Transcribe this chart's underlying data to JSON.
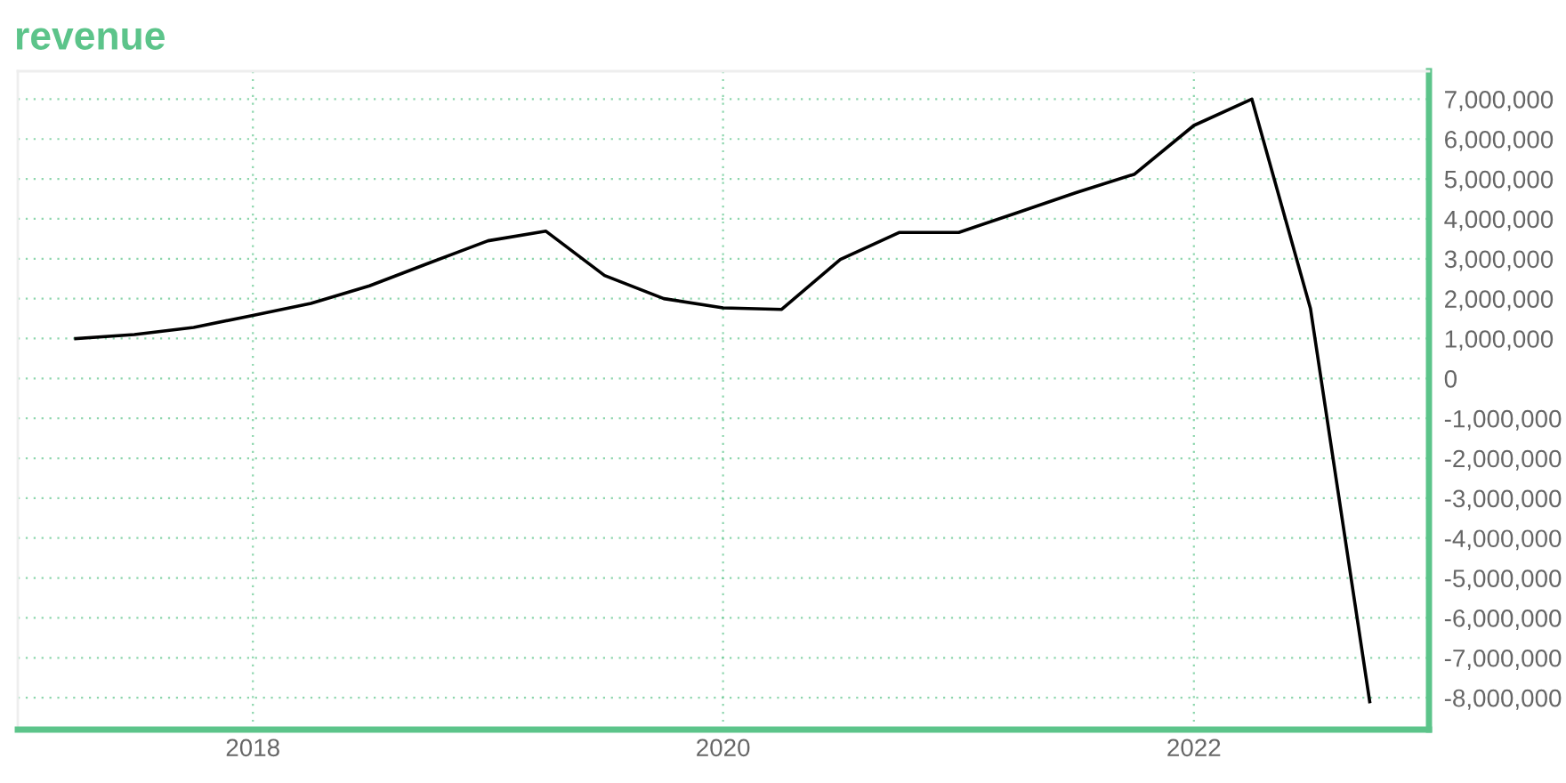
{
  "chart_data": {
    "type": "line",
    "title": "revenue",
    "x": [
      "2017-04-01",
      "2017-07-01",
      "2017-10-01",
      "2018-01-01",
      "2018-04-01",
      "2018-07-01",
      "2018-10-01",
      "2019-01-01",
      "2019-04-01",
      "2019-07-01",
      "2019-10-01",
      "2020-01-01",
      "2020-04-01",
      "2020-07-01",
      "2020-10-01",
      "2021-01-01",
      "2021-04-01",
      "2021-07-01",
      "2021-10-01",
      "2022-01-01",
      "2022-04-01",
      "2022-07-01",
      "2022-10-01"
    ],
    "series": [
      {
        "color": "#000000",
        "values": [
          1000000,
          1100000,
          1280000,
          1580000,
          1880000,
          2320000,
          2890000,
          3450000,
          3690000,
          2580000,
          2000000,
          1770000,
          1730000,
          2980000,
          3660000,
          3660000,
          4150000,
          4650000,
          5120000,
          6340000,
          7000000,
          1750000,
          -8100000
        ]
      }
    ],
    "xlim": [
      "2017-01-01",
      "2023-01-01"
    ],
    "xticks": [
      {
        "value": "2018-01-01",
        "label": "2018"
      },
      {
        "value": "2020-01-01",
        "label": "2020"
      },
      {
        "value": "2022-01-01",
        "label": "2022"
      }
    ],
    "ylim": [
      -8800000,
      7700000
    ],
    "yticks": [
      {
        "value": -8000000,
        "label": "-8,000,000"
      },
      {
        "value": -7000000,
        "label": "-7,000,000"
      },
      {
        "value": -6000000,
        "label": "-6,000,000"
      },
      {
        "value": -5000000,
        "label": "-5,000,000"
      },
      {
        "value": -4000000,
        "label": "-4,000,000"
      },
      {
        "value": -3000000,
        "label": "-3,000,000"
      },
      {
        "value": -2000000,
        "label": "-2,000,000"
      },
      {
        "value": -1000000,
        "label": "-1,000,000"
      },
      {
        "value": 0,
        "label": "0"
      },
      {
        "value": 1000000,
        "label": "1,000,000"
      },
      {
        "value": 2000000,
        "label": "2,000,000"
      },
      {
        "value": 3000000,
        "label": "3,000,000"
      },
      {
        "value": 4000000,
        "label": "4,000,000"
      },
      {
        "value": 5000000,
        "label": "5,000,000"
      },
      {
        "value": 6000000,
        "label": "6,000,000"
      },
      {
        "value": 7000000,
        "label": "7,000,000"
      }
    ],
    "grid": true,
    "legend": false,
    "marker": "none",
    "line_style": "solid"
  }
}
